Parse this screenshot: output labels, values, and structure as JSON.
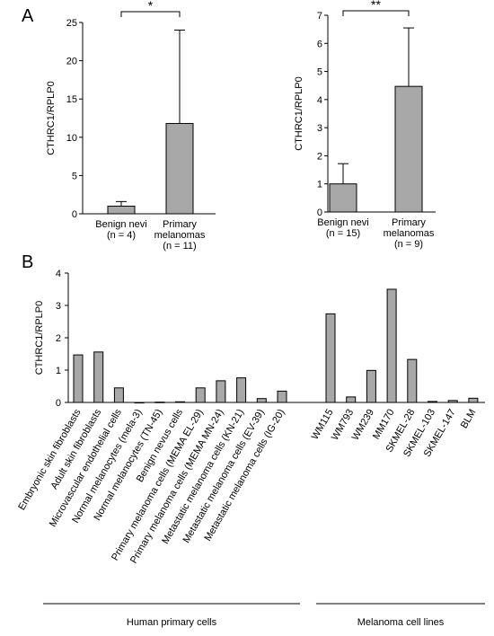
{
  "panels": {
    "a_label": "A",
    "b_label": "B"
  },
  "chart_data": [
    {
      "type": "bar",
      "ylabel": "CTHRC1/RPLP0",
      "ylim": [
        0,
        25
      ],
      "yticks": [
        0,
        5,
        10,
        15,
        20,
        25
      ],
      "categories": [
        [
          "Benign nevi",
          "(n = 4)"
        ],
        [
          "Primary",
          "melanomas",
          "(n = 11)"
        ]
      ],
      "values": [
        1.0,
        11.8
      ],
      "error_plus": [
        0.6,
        12.2
      ],
      "significance": "*"
    },
    {
      "type": "bar",
      "ylabel": "CTHRC1/RPLP0",
      "ylim": [
        0,
        7
      ],
      "yticks": [
        0,
        1,
        2,
        3,
        4,
        5,
        6,
        7
      ],
      "categories": [
        [
          "Benign nevi",
          "(n = 15)"
        ],
        [
          "Primary",
          "melanomas",
          "(n = 9)"
        ]
      ],
      "values": [
        1.0,
        4.47
      ],
      "error_plus": [
        0.72,
        2.08
      ],
      "significance": "**"
    },
    {
      "type": "bar",
      "ylabel": "CTHRC1/RPLP0",
      "ylim": [
        0,
        4
      ],
      "yticks": [
        0,
        1,
        2,
        3,
        4
      ],
      "categories": [
        "Embryonic skin fibroblasts",
        "Adult skin fibroblasts",
        "Microvascular endothelial cells",
        "Normal melanocytes (mela-3)",
        "Normal melanocytes (TN-45)",
        "Benign nevus cells",
        "Primary melanoma cells (MEMA EL-29)",
        "Primary melanoma cells (MEMA MN-24)",
        "Metastatic melanoma cells (KN-21)",
        "Metastatic melanoma cells (EV-39)",
        "Metastatic melanoma cells (IG-20)",
        "WM115",
        "WM793",
        "WM239",
        "MM170",
        "SKMEL-28",
        "SKMEL-103",
        "SKMEL-147",
        "BLM"
      ],
      "values": [
        1.47,
        1.56,
        0.45,
        0.0,
        0.01,
        0.02,
        0.45,
        0.67,
        0.76,
        0.12,
        0.35,
        2.74,
        0.17,
        0.99,
        3.5,
        1.33,
        0.03,
        0.06,
        0.13
      ],
      "groups": [
        {
          "name": "Human primary cells",
          "count": 11
        },
        {
          "name": "Melanoma cell lines",
          "count": 8
        }
      ]
    }
  ]
}
